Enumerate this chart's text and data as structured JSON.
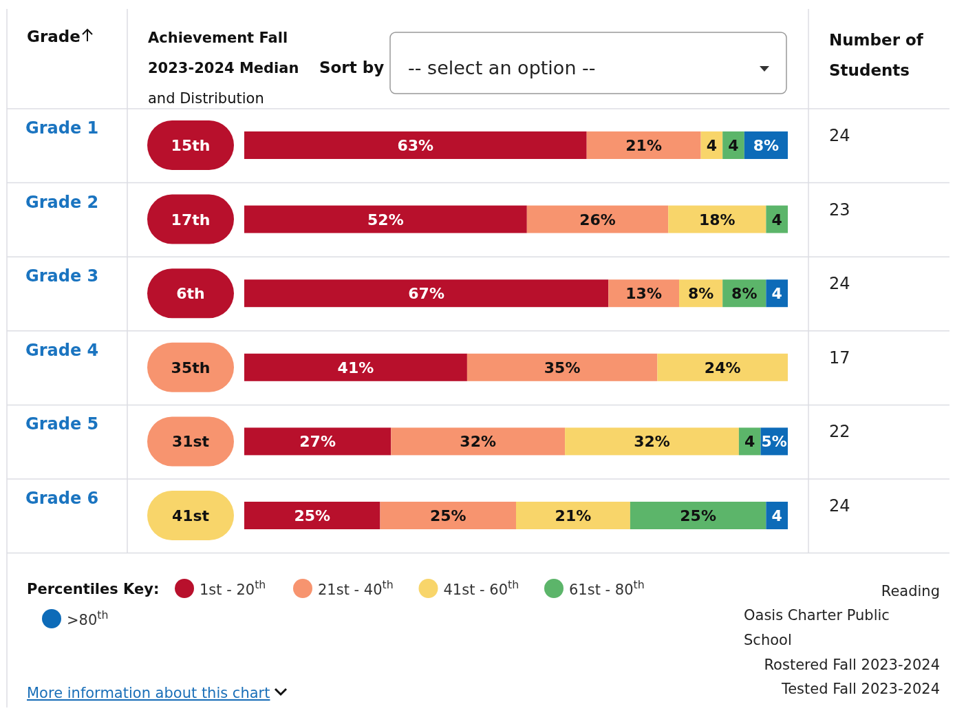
{
  "chart_data": {
    "type": "bar",
    "orientation": "horizontal",
    "stacked": true,
    "title": "Achievement Fall 2023-2024 Median and Distribution",
    "ylabel": "Grade",
    "legend_title": "Percentiles Key:",
    "legend": "bottom",
    "xlim": [
      0,
      100
    ],
    "categories": [
      "Grade 1",
      "Grade 2",
      "Grade 3",
      "Grade 4",
      "Grade 5",
      "Grade 6"
    ],
    "series": [
      {
        "name": "1st - 20$^{th}$",
        "color": "#b8102c",
        "values": [
          63,
          52,
          67,
          41,
          27,
          25
        ],
        "value_labels": [
          "63%",
          "52%",
          "67%",
          "41%",
          "27%",
          "25%"
        ]
      },
      {
        "name": "21st - 40$^{th}$",
        "color": "#f7946f",
        "values": [
          21,
          26,
          13,
          35,
          32,
          25
        ],
        "value_labels": [
          "21%",
          "26%",
          "13%",
          "35%",
          "32%",
          "25%"
        ]
      },
      {
        "name": "41st - 60$^{th}$",
        "color": "#f8d56a",
        "values": [
          4,
          18,
          8,
          24,
          32,
          21
        ],
        "value_labels": [
          "4",
          "18%",
          "8%",
          "24%",
          "32%",
          "21%"
        ]
      },
      {
        "name": "61st - 80$^{th}$",
        "color": "#5cb56a",
        "values": [
          4,
          4,
          8,
          null,
          4,
          25
        ],
        "value_labels": [
          "4",
          "4",
          "8%",
          null,
          "4",
          "25%"
        ]
      },
      {
        "name": ">80$^{th}$",
        "color": "#0d6bb8",
        "values": [
          8,
          null,
          4,
          null,
          5,
          4
        ],
        "value_labels": [
          "8%",
          null,
          "4",
          null,
          "5%",
          "4"
        ]
      }
    ],
    "annotations": [
      "Sort by",
      "-- select an option --",
      "Number of Students",
      "24",
      "23",
      "24",
      "17",
      "22",
      "24",
      "15th",
      "17th",
      "6th",
      "35th",
      "31st",
      "41st",
      "Reading",
      "Oasis Charter Public School",
      "Rostered Fall 2023-2024",
      "Tested Fall 2023-2024",
      "More information about this chart"
    ]
  }
}
